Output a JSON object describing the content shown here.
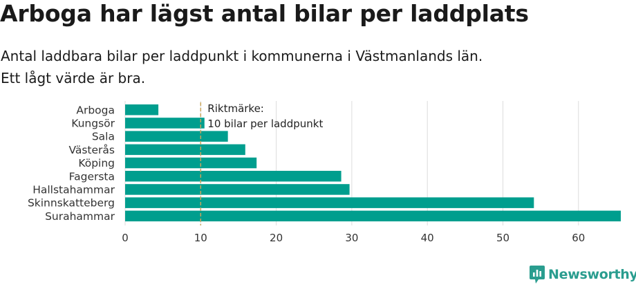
{
  "header": {
    "title": "Arboga har lägst antal bilar per laddplats",
    "subtitle_line1": "Antal laddbara bilar per laddpunkt i kommunerna i Västmanlands län.",
    "subtitle_line2": "Ett lågt värde är bra."
  },
  "chart_data": {
    "type": "bar",
    "orientation": "horizontal",
    "categories": [
      "Arboga",
      "Kungsör",
      "Sala",
      "Västerås",
      "Köping",
      "Fagersta",
      "Hallstahammar",
      "Skinnskatteberg",
      "Surahammar"
    ],
    "values": [
      4.4,
      10.5,
      13.6,
      15.9,
      17.4,
      28.6,
      29.7,
      54.1,
      65.6
    ],
    "xlim": [
      0,
      65.6
    ],
    "xticks": [
      0,
      10,
      20,
      30,
      40,
      50,
      60
    ],
    "grid": true,
    "bar_color": "#009e8e",
    "reference_line": {
      "value": 10,
      "color": "#c9a55c",
      "label_line1": "Riktmärke:",
      "label_line2": "10 bilar per laddpunkt"
    }
  },
  "brand": {
    "name": "Newsworthy",
    "color": "#2a9d8f",
    "icon": "newsworthy-logo-icon"
  }
}
